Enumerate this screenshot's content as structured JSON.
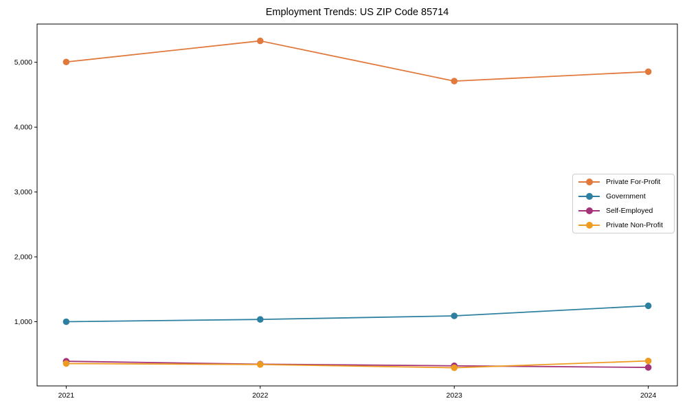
{
  "title": "Employment Trends: US ZIP Code 85714",
  "chart_data": {
    "type": "line",
    "title": "Employment Trends: US ZIP Code 85714",
    "x": [
      2021,
      2022,
      2023,
      2024
    ],
    "x_tick_labels": [
      "2021",
      "2022",
      "2023",
      "2024"
    ],
    "y_ticks": [
      1000,
      2000,
      3000,
      4000,
      5000
    ],
    "y_tick_labels": [
      "1,000",
      "2,000",
      "3,000",
      "4,000",
      "5,000"
    ],
    "xlim": [
      2020.85,
      2024.15
    ],
    "ylim": [
      10,
      5590
    ],
    "grid": false,
    "legend_position": "center right",
    "series": [
      {
        "name": "Private For-Profit",
        "color": "#e1793c",
        "values": [
          5005,
          5330,
          4710,
          4855
        ]
      },
      {
        "name": "Government",
        "color": "#2e80a0",
        "values": [
          1000,
          1035,
          1090,
          1245
        ]
      },
      {
        "name": "Self-Employed",
        "color": "#a43379",
        "values": [
          390,
          345,
          320,
          295
        ]
      },
      {
        "name": "Private Non-Profit",
        "color": "#ee9b22",
        "values": [
          355,
          340,
          290,
          395
        ]
      }
    ],
    "axis_color": "#000000",
    "tick_font_size": 10.5
  }
}
